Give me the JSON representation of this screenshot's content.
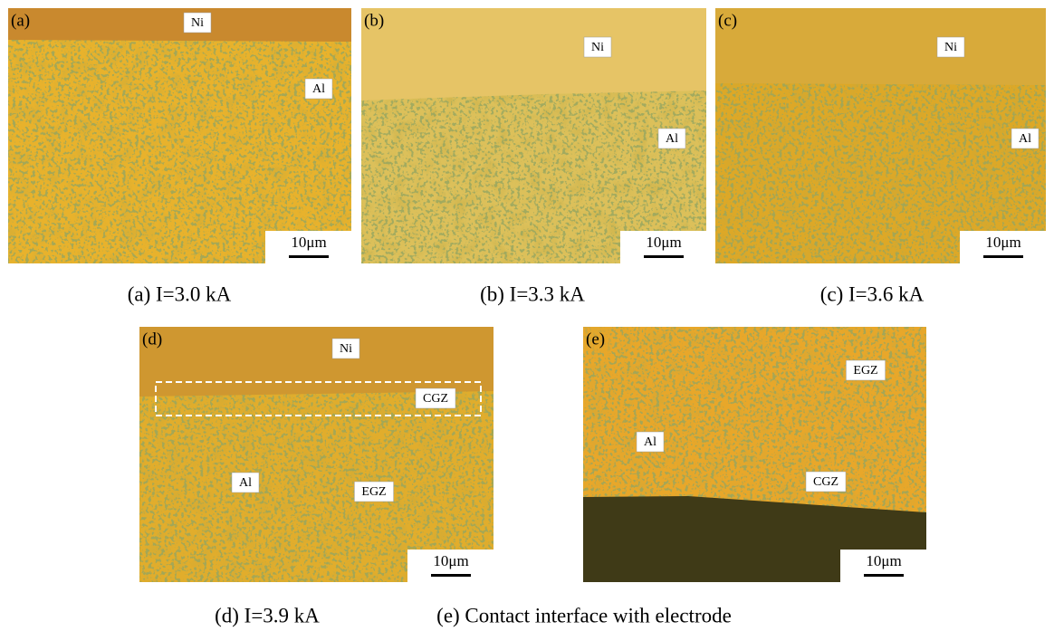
{
  "panels": [
    {
      "tag": "(a)",
      "labels": [
        "Ni",
        "Al"
      ],
      "scale": "10μm",
      "caption": "(a) I=3.0 kA"
    },
    {
      "tag": "(b)",
      "labels": [
        "Ni",
        "Al"
      ],
      "scale": "10μm",
      "caption": "(b) I=3.3 kA"
    },
    {
      "tag": "(c)",
      "labels": [
        "Ni",
        "Al"
      ],
      "scale": "10μm",
      "caption": "(c) I=3.6 kA"
    },
    {
      "tag": "(d)",
      "labels": [
        "Ni",
        "CGZ",
        "Al",
        "EGZ"
      ],
      "scale": "10μm",
      "caption": "(d) I=3.9 kA"
    },
    {
      "tag": "(e)",
      "labels": [
        "EGZ",
        "Al",
        "CGZ"
      ],
      "scale": "10μm",
      "caption": "(e) Contact interface with electrode"
    }
  ]
}
